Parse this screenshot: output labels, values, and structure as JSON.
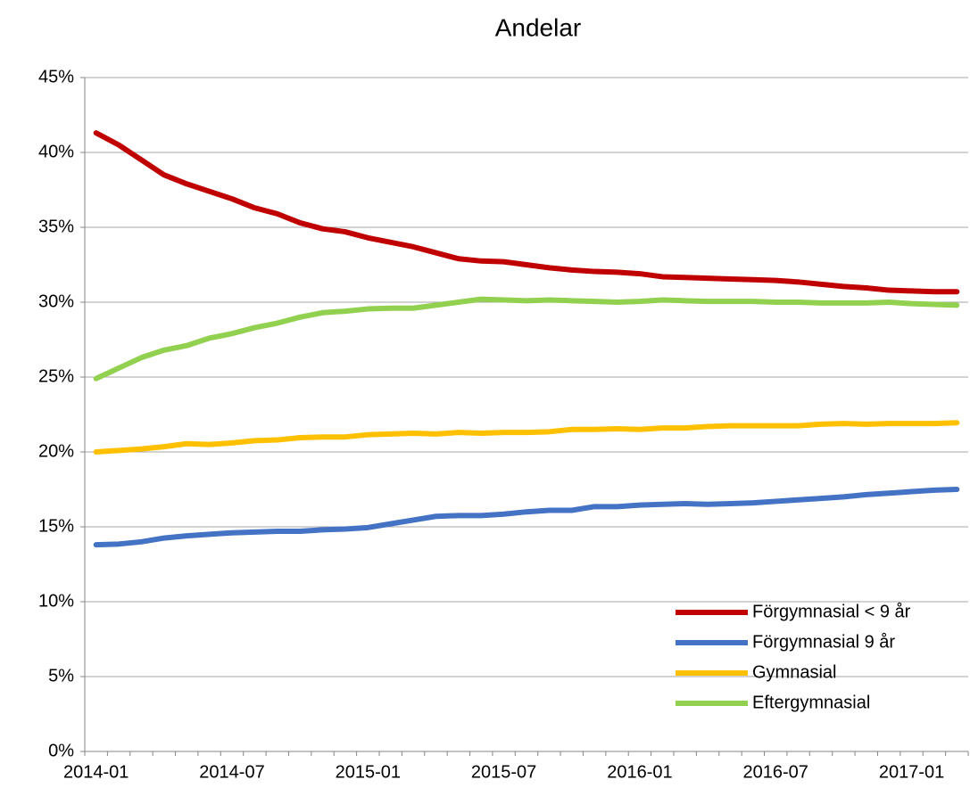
{
  "chart_data": {
    "type": "line",
    "title": "Andelar",
    "categories": [
      "2014-01",
      null,
      null,
      null,
      null,
      null,
      "2014-07",
      null,
      null,
      null,
      null,
      null,
      "2015-01",
      null,
      null,
      null,
      null,
      null,
      "2015-07",
      null,
      null,
      null,
      null,
      null,
      "2016-01",
      null,
      null,
      null,
      null,
      null,
      "2016-07",
      null,
      null,
      null,
      null,
      null,
      "2017-01",
      null,
      null
    ],
    "series": [
      {
        "name": "Förgymnasial < 9 år",
        "color": "#c00000",
        "values": [
          41.3,
          40.5,
          39.5,
          38.5,
          37.9,
          37.4,
          36.9,
          36.3,
          35.9,
          35.3,
          34.9,
          34.7,
          34.3,
          34.0,
          33.7,
          33.3,
          32.9,
          32.75,
          32.7,
          32.5,
          32.3,
          32.15,
          32.05,
          32.0,
          31.9,
          31.7,
          31.65,
          31.6,
          31.55,
          31.5,
          31.45,
          31.35,
          31.2,
          31.05,
          30.95,
          30.8,
          30.75,
          30.7,
          30.7
        ]
      },
      {
        "name": "Förgymnasial 9 år",
        "color": "#4472c4",
        "values": [
          13.8,
          13.85,
          14.0,
          14.25,
          14.4,
          14.5,
          14.6,
          14.65,
          14.7,
          14.7,
          14.8,
          14.85,
          14.95,
          15.2,
          15.45,
          15.7,
          15.75,
          15.75,
          15.85,
          16.0,
          16.1,
          16.1,
          16.35,
          16.35,
          16.45,
          16.5,
          16.55,
          16.5,
          16.55,
          16.6,
          16.7,
          16.8,
          16.9,
          17.0,
          17.15,
          17.25,
          17.35,
          17.45,
          17.5
        ]
      },
      {
        "name": "Gymnasial",
        "color": "#ffc000",
        "values": [
          20.0,
          20.1,
          20.2,
          20.35,
          20.55,
          20.5,
          20.6,
          20.75,
          20.8,
          20.95,
          21.0,
          21.0,
          21.15,
          21.2,
          21.25,
          21.2,
          21.3,
          21.25,
          21.3,
          21.3,
          21.35,
          21.5,
          21.5,
          21.55,
          21.5,
          21.6,
          21.6,
          21.7,
          21.75,
          21.75,
          21.75,
          21.75,
          21.85,
          21.9,
          21.85,
          21.9,
          21.9,
          21.9,
          21.95
        ]
      },
      {
        "name": "Eftergymnasial",
        "color": "#92d050",
        "values": [
          24.9,
          25.6,
          26.3,
          26.8,
          27.1,
          27.6,
          27.9,
          28.3,
          28.6,
          29.0,
          29.3,
          29.4,
          29.55,
          29.6,
          29.6,
          29.8,
          30.0,
          30.2,
          30.15,
          30.1,
          30.15,
          30.1,
          30.05,
          30.0,
          30.05,
          30.15,
          30.1,
          30.05,
          30.05,
          30.05,
          30.0,
          30.0,
          29.95,
          29.95,
          29.95,
          30.0,
          29.9,
          29.85,
          29.8
        ]
      }
    ],
    "ylim": [
      0,
      45
    ],
    "yticks": [
      {
        "value": 0,
        "label": "0%"
      },
      {
        "value": 5,
        "label": "5%"
      },
      {
        "value": 10,
        "label": "10%"
      },
      {
        "value": 15,
        "label": "15%"
      },
      {
        "value": 20,
        "label": "20%"
      },
      {
        "value": 25,
        "label": "25%"
      },
      {
        "value": 30,
        "label": "30%"
      },
      {
        "value": 35,
        "label": "35%"
      },
      {
        "value": 40,
        "label": "40%"
      },
      {
        "value": 45,
        "label": "45%"
      }
    ],
    "grid": true,
    "legend": "lower right"
  }
}
